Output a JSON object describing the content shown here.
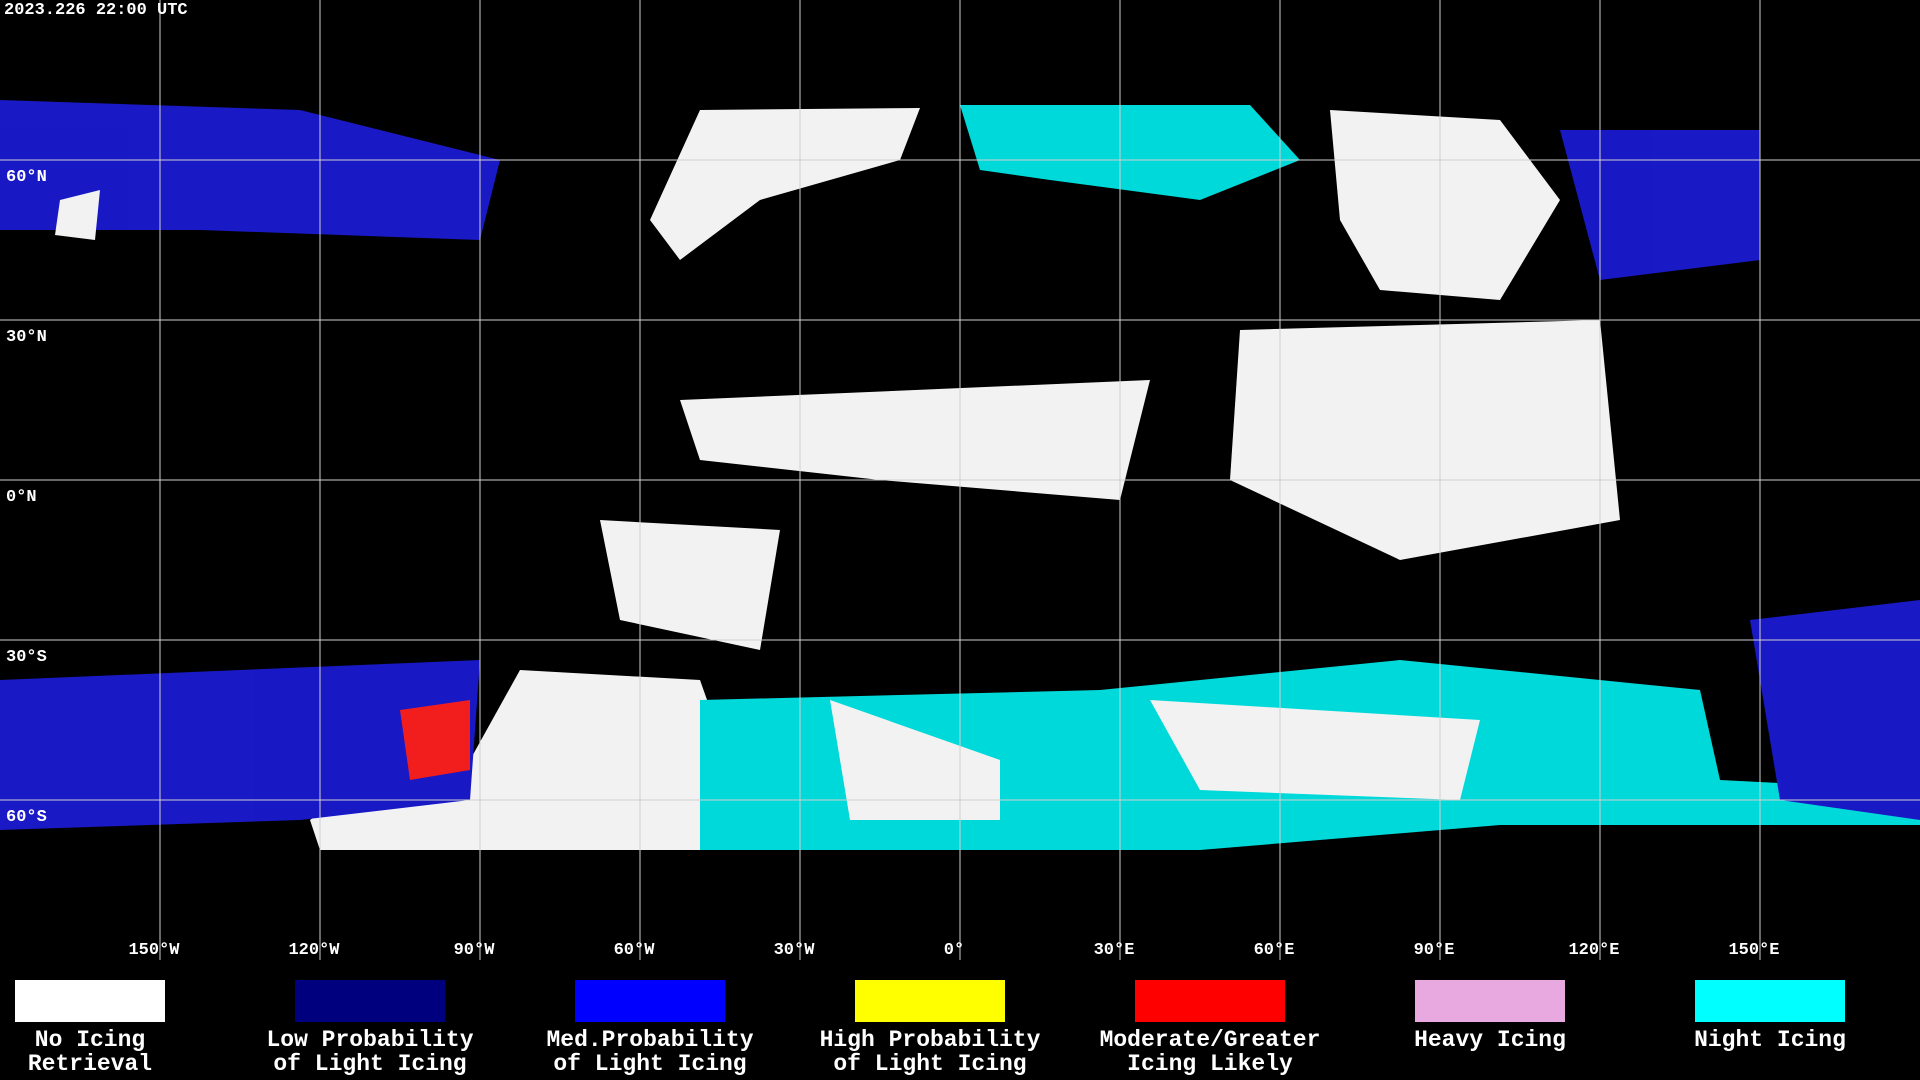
{
  "header": {
    "timestamp": "2023.226 22:00 UTC"
  },
  "map": {
    "meridians": [
      {
        "value": -150,
        "label": "150°W"
      },
      {
        "value": -120,
        "label": "120°W"
      },
      {
        "value": -90,
        "label": "90°W"
      },
      {
        "value": -60,
        "label": "60°W"
      },
      {
        "value": -30,
        "label": "30°W"
      },
      {
        "value": 0,
        "label": "0°"
      },
      {
        "value": 30,
        "label": "30°E"
      },
      {
        "value": 60,
        "label": "60°E"
      },
      {
        "value": 90,
        "label": "90°E"
      },
      {
        "value": 120,
        "label": "120°E"
      },
      {
        "value": 150,
        "label": "150°E"
      }
    ],
    "parallels": [
      {
        "value": 60,
        "label": "60°N"
      },
      {
        "value": 30,
        "label": "30°N"
      },
      {
        "value": 0,
        "label": "0°N"
      },
      {
        "value": -30,
        "label": "30°S"
      },
      {
        "value": -60,
        "label": "60°S"
      }
    ]
  },
  "legend": {
    "items": [
      {
        "color": "#ffffff",
        "lines": [
          "No Icing",
          "Retrieval"
        ]
      },
      {
        "color": "#00007f",
        "lines": [
          "Low Probability",
          "of Light Icing"
        ]
      },
      {
        "color": "#0000ff",
        "lines": [
          "Med.Probability",
          "of Light Icing"
        ]
      },
      {
        "color": "#ffff00",
        "lines": [
          "High Probability",
          "of Light Icing"
        ]
      },
      {
        "color": "#ff0000",
        "lines": [
          "Moderate/Greater",
          "Icing Likely"
        ]
      },
      {
        "color": "#e8a8e0",
        "lines": [
          "Heavy Icing"
        ]
      },
      {
        "color": "#00ffff",
        "lines": [
          "Night Icing"
        ]
      }
    ]
  }
}
